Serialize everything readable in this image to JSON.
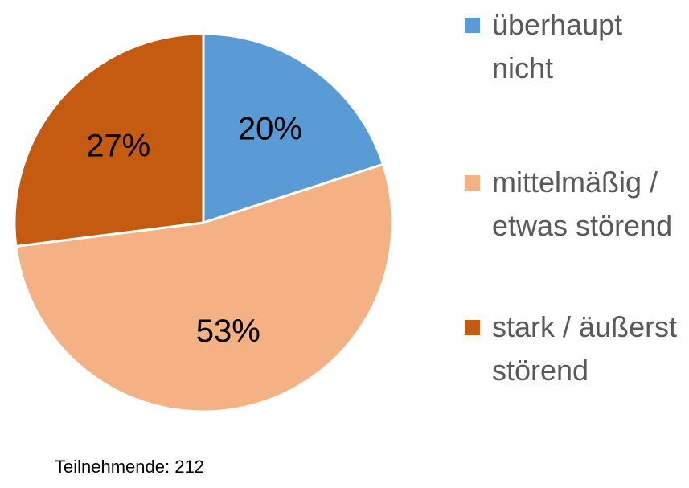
{
  "chart_data": {
    "type": "pie",
    "categories": [
      "überhaupt nicht",
      "mittelmäßig / etwas störend",
      "stark / äußerst störend"
    ],
    "values": [
      20,
      53,
      27
    ],
    "value_labels": [
      "20%",
      "53%",
      "27%"
    ],
    "colors": [
      "#5b9bd5",
      "#f4b183",
      "#c55a11"
    ],
    "legend": "right",
    "annotation": "Teilnehmende: 212"
  }
}
